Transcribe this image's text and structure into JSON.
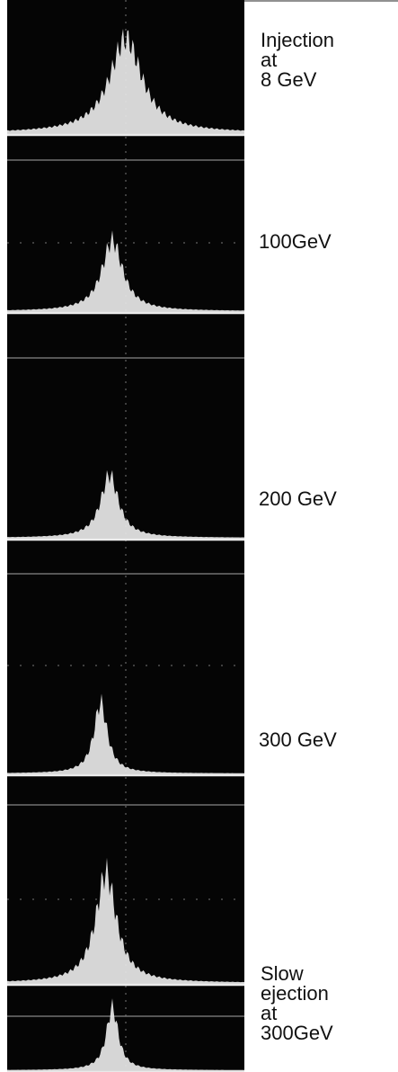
{
  "labels": [
    {
      "lines": [
        "Injection",
        "at",
        "8 GeV"
      ]
    },
    {
      "lines": [
        "100GeV"
      ]
    },
    {
      "lines": [
        "200 GeV"
      ]
    },
    {
      "lines": [
        "300 GeV"
      ]
    },
    {
      "lines": [
        "Slow",
        "ejection",
        "at",
        "300GeV"
      ]
    }
  ]
}
